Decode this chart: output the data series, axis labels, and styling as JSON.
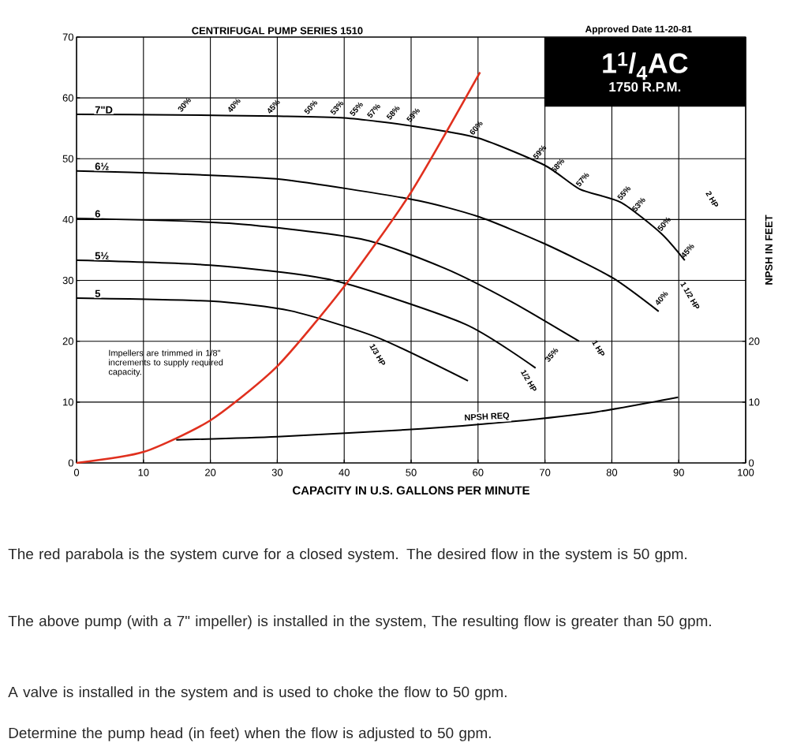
{
  "chart_data": {
    "type": "line",
    "title": "CENTRIFUGAL PUMP SERIES 1510",
    "subtitle": "Approved Date 11-20-81",
    "xlabel": "CAPACITY IN U.S. GALLONS PER MINUTE",
    "y2label": "NPSH IN FEET",
    "xlim": [
      0,
      100
    ],
    "ylim": [
      0,
      70
    ],
    "xticks": [
      0,
      10,
      20,
      30,
      40,
      50,
      60,
      70,
      80,
      90,
      100
    ],
    "yticks": [
      0,
      10,
      20,
      30,
      40,
      50,
      60,
      70
    ],
    "y2lim": [
      0,
      70
    ],
    "y2ticks": [
      0,
      10,
      20
    ],
    "grid": true,
    "series": [
      {
        "name": "7\"D",
        "color": "#000000",
        "x": [
          0,
          15,
          30,
          40,
          50,
          60,
          70,
          75.2,
          81.4,
          87.4,
          90.9
        ],
        "values": [
          57.3,
          57.2,
          57,
          56.7,
          55.4,
          53.4,
          48.9,
          45,
          42.8,
          37.7,
          33.3
        ]
      },
      {
        "name": "6½",
        "color": "#000000",
        "x": [
          0,
          15,
          30.7,
          50.2,
          60,
          70,
          80,
          87
        ],
        "values": [
          48,
          47.5,
          46.6,
          43.3,
          40.5,
          36,
          30.5,
          24.9
        ]
      },
      {
        "name": "6",
        "color": "#000000",
        "x": [
          0,
          22.8,
          42.5,
          55,
          65,
          75.1
        ],
        "values": [
          40.2,
          39.4,
          36.8,
          32,
          26.5,
          20
        ]
      },
      {
        "name": "5½",
        "color": "#000000",
        "x": [
          0,
          20,
          38.4,
          58.1,
          68.6
        ],
        "values": [
          33.3,
          32.5,
          30,
          22.8,
          15.6
        ]
      },
      {
        "name": "5",
        "color": "#000000",
        "x": [
          0,
          20,
          32,
          45,
          58.5
        ],
        "values": [
          27.1,
          26.6,
          25,
          20.6,
          13.5
        ]
      },
      {
        "color": "#e0301e",
        "x": [
          0,
          10,
          20,
          30,
          40,
          50,
          60.3
        ],
        "values": [
          0,
          1.8,
          7,
          15.9,
          29,
          44.5,
          64.2
        ]
      },
      {
        "name": "NPSH REQ",
        "color": "#000000",
        "axis": "y2",
        "x": [
          14.9,
          30,
          51.5,
          65,
          77.8,
          89.9
        ],
        "values": [
          3.8,
          4.3,
          5.6,
          6.8,
          8.4,
          10.8
        ]
      }
    ],
    "annotations": [
      "1$^{1}$/$_{4}$AC",
      "1750 R.P.M.",
      "Impellers are trimmed in 1/8\" increments to supply required capacity.",
      "The red parabola is the system curve for a closed system.  The desired flow in the system is 50 gpm.",
      "The above pump (with a 7\" impeller) is installed in the system,  The resulting flow is greater than 50 gpm.",
      "A valve is installed in the system and is used to choke the flow to 50 gpm.",
      "Determine the pump head (in feet) when the flow is adjusted to 50 gpm.",
      {
        "text": "30%",
        "x": 15.7,
        "y": 57.3
      },
      {
        "text": "40%",
        "x": 23.1,
        "y": 57.2
      },
      {
        "text": "45%",
        "x": 29,
        "y": 57
      },
      {
        "text": "50%",
        "x": 34.6,
        "y": 56.9
      },
      {
        "text": "53%",
        "x": 38.5,
        "y": 56.8
      },
      {
        "text": "55%",
        "x": 41.4,
        "y": 56.6
      },
      {
        "text": "57%",
        "x": 44,
        "y": 56.3
      },
      {
        "text": "58%",
        "x": 46.9,
        "y": 56
      },
      {
        "text": "59%",
        "x": 49.9,
        "y": 55.6
      },
      {
        "text": "60%",
        "x": 59.3,
        "y": 53.5
      },
      {
        "text": "59%",
        "x": 68.8,
        "y": 49.5
      },
      {
        "text": "58%",
        "x": 71.5,
        "y": 47.3
      },
      {
        "text": "57%",
        "x": 75.2,
        "y": 45
      },
      {
        "text": "55%",
        "x": 81.4,
        "y": 42.8
      },
      {
        "text": "53%",
        "x": 83.6,
        "y": 40.9
      },
      {
        "text": "50%",
        "x": 87.4,
        "y": 37.7
      },
      {
        "text": "45%",
        "x": 90.9,
        "y": 33.3
      },
      {
        "text": "40%",
        "x": 87,
        "y": 25.5
      },
      "35%",
      "1/3 HP",
      "1/2 HP",
      "1 HP",
      "1 1/2 HP",
      "2 HP"
    ]
  }
}
